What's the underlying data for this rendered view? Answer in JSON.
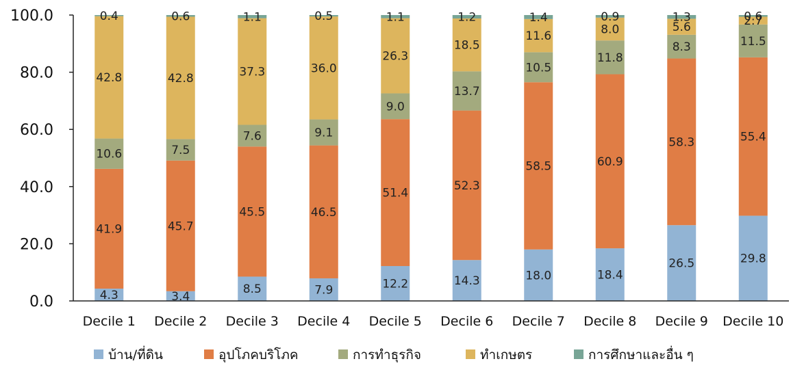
{
  "chart_data": {
    "type": "bar",
    "stacked": true,
    "title": "",
    "xlabel": "",
    "ylabel": "",
    "ylim": [
      0,
      100
    ],
    "yticks": [
      "0.0",
      "20.0",
      "40.0",
      "60.0",
      "80.0",
      "100.0"
    ],
    "grid": false,
    "legend_position": "bottom",
    "categories": [
      "Decile 1",
      "Decile 2",
      "Decile 3",
      "Decile 4",
      "Decile 5",
      "Decile 6",
      "Decile 7",
      "Decile 8",
      "Decile 9",
      "Decile 10"
    ],
    "series": [
      {
        "name": "บ้าน/ที่ดิน",
        "color": "#92b4d4",
        "values": [
          4.3,
          3.4,
          8.5,
          7.9,
          12.2,
          14.3,
          18.0,
          18.4,
          26.5,
          29.8
        ]
      },
      {
        "name": "อุปโภคบริโภค",
        "color": "#e07d45",
        "values": [
          41.9,
          45.7,
          45.5,
          46.5,
          51.4,
          52.3,
          58.5,
          60.9,
          58.3,
          55.4
        ]
      },
      {
        "name": "การทำธุรกิจ",
        "color": "#a3aa7e",
        "values": [
          10.6,
          7.5,
          7.6,
          9.1,
          9.0,
          13.7,
          10.5,
          11.8,
          8.3,
          11.5
        ]
      },
      {
        "name": "ทำเกษตร",
        "color": "#ddb55d",
        "values": [
          42.8,
          42.8,
          37.3,
          36.0,
          26.3,
          18.5,
          11.6,
          8.0,
          5.6,
          2.7
        ]
      },
      {
        "name": "การศึกษาและอื่น ๆ",
        "color": "#78a596",
        "values": [
          0.4,
          0.6,
          1.1,
          0.5,
          1.1,
          1.2,
          1.4,
          0.9,
          1.3,
          0.6
        ]
      }
    ]
  }
}
